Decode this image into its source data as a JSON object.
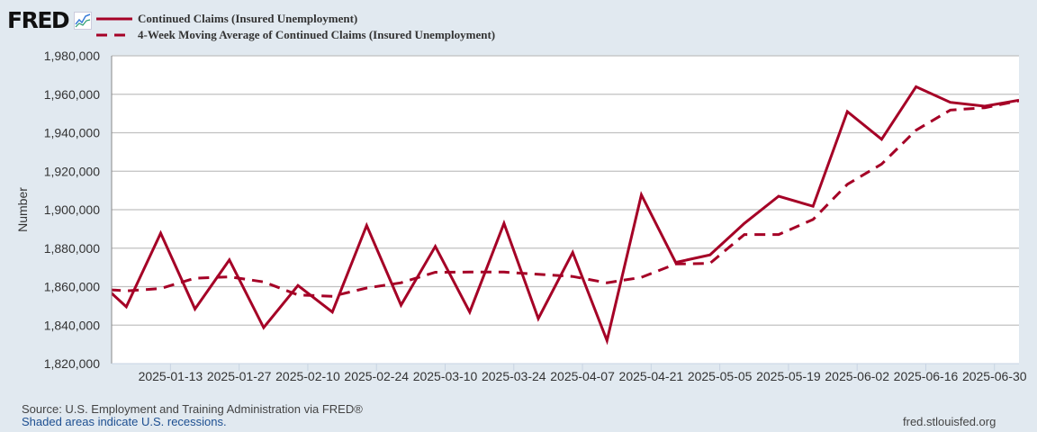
{
  "header": {
    "logo": "FRED"
  },
  "footer": {
    "source": "Source: U.S. Employment and Training Administration via FRED®",
    "recessions": "Shaded areas indicate U.S. recessions.",
    "url": "fred.stlouisfed.org"
  },
  "colors": {
    "line": "#a50026",
    "background": "#e1e9f0",
    "grid": "#c0c0c0"
  },
  "chart_data": {
    "type": "line",
    "title": "",
    "xlabel": "",
    "ylabel": "Number",
    "xlim": [
      "2025-01-01",
      "2025-07-05"
    ],
    "ylim": [
      1820000,
      1980000
    ],
    "grid": true,
    "legend_position": "top-left",
    "y_ticks": [
      1820000,
      1840000,
      1860000,
      1880000,
      1900000,
      1920000,
      1940000,
      1960000,
      1980000
    ],
    "y_tick_labels": [
      "1,820,000",
      "1,840,000",
      "1,860,000",
      "1,880,000",
      "1,900,000",
      "1,920,000",
      "1,940,000",
      "1,960,000",
      "1,980,000"
    ],
    "x_ticks": [
      "2025-01-13",
      "2025-01-27",
      "2025-02-10",
      "2025-02-24",
      "2025-03-10",
      "2025-03-24",
      "2025-04-07",
      "2025-04-21",
      "2025-05-05",
      "2025-05-19",
      "2025-06-02",
      "2025-06-16",
      "2025-06-30"
    ],
    "x": [
      "2024-12-28",
      "2025-01-04",
      "2025-01-11",
      "2025-01-18",
      "2025-01-25",
      "2025-02-01",
      "2025-02-08",
      "2025-02-15",
      "2025-02-22",
      "2025-03-01",
      "2025-03-08",
      "2025-03-15",
      "2025-03-22",
      "2025-03-29",
      "2025-04-05",
      "2025-04-12",
      "2025-04-19",
      "2025-04-26",
      "2025-05-03",
      "2025-05-10",
      "2025-05-17",
      "2025-05-24",
      "2025-05-31",
      "2025-06-07",
      "2025-06-14",
      "2025-06-21",
      "2025-06-28",
      "2025-07-05"
    ],
    "series": [
      {
        "name": "Continued Claims (Insured Unemployment)",
        "style": "solid",
        "values": [
          1866000,
          1849500,
          1887800,
          1848400,
          1873900,
          1838700,
          1860600,
          1846800,
          1891800,
          1850400,
          1880900,
          1846800,
          1892900,
          1843400,
          1877800,
          1832000,
          1907700,
          1872600,
          1876500,
          1892900,
          1907000,
          1901800,
          1951000,
          1936600,
          1963900,
          1955800,
          1953800,
          1956900
        ]
      },
      {
        "name": "4-Week Moving Average of Continued Claims (Insured Unemployment)",
        "style": "dashed",
        "values": [
          1859000,
          1857800,
          1859000,
          1864400,
          1865100,
          1862500,
          1855700,
          1855000,
          1859300,
          1862000,
          1867500,
          1867600,
          1867600,
          1866400,
          1865300,
          1862000,
          1864800,
          1871800,
          1872100,
          1887100,
          1887100,
          1894900,
          1913200,
          1923700,
          1941300,
          1951800,
          1953000,
          1956600
        ]
      }
    ]
  }
}
